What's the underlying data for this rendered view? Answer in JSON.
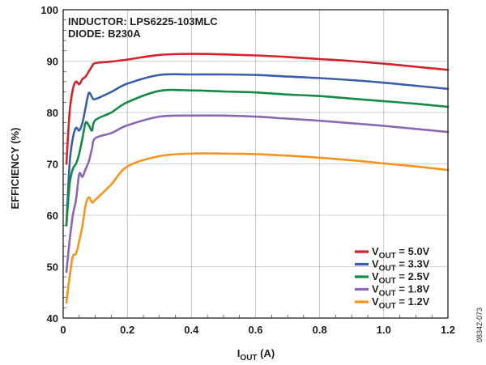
{
  "chart_data": {
    "type": "line",
    "annotations": [
      "INDUCTOR: LPS6225-103MLC",
      "DIODE: B230A"
    ],
    "xlabel": {
      "main": "I",
      "sub": "OUT",
      "unit": " (A)"
    },
    "ylabel": "EFFICIENCY (%)",
    "xlim": [
      0,
      1.2
    ],
    "ylim": [
      40,
      100
    ],
    "xticks": [
      "0",
      "0.2",
      "0.4",
      "0.6",
      "0.8",
      "1.0",
      "1.2"
    ],
    "yticks": [
      "40",
      "50",
      "60",
      "70",
      "80",
      "90",
      "100"
    ],
    "grid": true,
    "legend_position": "bottom-right",
    "figure_number": "08342-073",
    "series": [
      {
        "label": {
          "main": "V",
          "sub": "OUT",
          "value": " = 5.0V"
        },
        "color": "#d2232a",
        "points": [
          [
            0.01,
            70
          ],
          [
            0.02,
            80
          ],
          [
            0.03,
            84.5
          ],
          [
            0.04,
            86
          ],
          [
            0.05,
            85.5
          ],
          [
            0.06,
            86.5
          ],
          [
            0.07,
            87
          ],
          [
            0.08,
            88
          ],
          [
            0.09,
            89
          ],
          [
            0.1,
            89.6
          ],
          [
            0.15,
            89.9
          ],
          [
            0.2,
            90.3
          ],
          [
            0.3,
            91.2
          ],
          [
            0.4,
            91.4
          ],
          [
            0.5,
            91.3
          ],
          [
            0.6,
            91.1
          ],
          [
            0.7,
            90.8
          ],
          [
            0.8,
            90.4
          ],
          [
            0.9,
            90
          ],
          [
            1.0,
            89.5
          ],
          [
            1.1,
            88.9
          ],
          [
            1.2,
            88.3
          ]
        ]
      },
      {
        "label": {
          "main": "V",
          "sub": "OUT",
          "value": " = 3.3V"
        },
        "color": "#3b5ea8",
        "points": [
          [
            0.01,
            58
          ],
          [
            0.02,
            70
          ],
          [
            0.03,
            75
          ],
          [
            0.04,
            77
          ],
          [
            0.05,
            76.5
          ],
          [
            0.06,
            78
          ],
          [
            0.07,
            81
          ],
          [
            0.08,
            83.8
          ],
          [
            0.09,
            83
          ],
          [
            0.1,
            82.6
          ],
          [
            0.15,
            84
          ],
          [
            0.2,
            85.6
          ],
          [
            0.3,
            87.3
          ],
          [
            0.4,
            87.4
          ],
          [
            0.5,
            87.4
          ],
          [
            0.6,
            87.3
          ],
          [
            0.7,
            87
          ],
          [
            0.8,
            86.7
          ],
          [
            0.9,
            86.3
          ],
          [
            1.0,
            85.8
          ],
          [
            1.1,
            85.2
          ],
          [
            1.2,
            84.6
          ]
        ]
      },
      {
        "label": {
          "main": "V",
          "sub": "OUT",
          "value": " = 2.5V"
        },
        "color": "#138a45",
        "points": [
          [
            0.01,
            58
          ],
          [
            0.02,
            66
          ],
          [
            0.03,
            69
          ],
          [
            0.04,
            70
          ],
          [
            0.05,
            72
          ],
          [
            0.06,
            75
          ],
          [
            0.07,
            78
          ],
          [
            0.08,
            77.5
          ],
          [
            0.09,
            76.5
          ],
          [
            0.1,
            78.5
          ],
          [
            0.15,
            80
          ],
          [
            0.2,
            82
          ],
          [
            0.3,
            84.2
          ],
          [
            0.4,
            84.3
          ],
          [
            0.5,
            84.1
          ],
          [
            0.6,
            83.9
          ],
          [
            0.7,
            83.5
          ],
          [
            0.8,
            83.2
          ],
          [
            0.9,
            82.7
          ],
          [
            1.0,
            82.2
          ],
          [
            1.1,
            81.7
          ],
          [
            1.2,
            81.1
          ]
        ]
      },
      {
        "label": {
          "main": "V",
          "sub": "OUT",
          "value": " = 1.8V"
        },
        "color": "#8b67b0",
        "points": [
          [
            0.01,
            49
          ],
          [
            0.02,
            55
          ],
          [
            0.03,
            60
          ],
          [
            0.04,
            63
          ],
          [
            0.05,
            68
          ],
          [
            0.06,
            67.5
          ],
          [
            0.07,
            69
          ],
          [
            0.08,
            70.5
          ],
          [
            0.09,
            73
          ],
          [
            0.1,
            75
          ],
          [
            0.15,
            76
          ],
          [
            0.2,
            77.5
          ],
          [
            0.3,
            79.2
          ],
          [
            0.4,
            79.4
          ],
          [
            0.5,
            79.4
          ],
          [
            0.6,
            79.2
          ],
          [
            0.7,
            78.8
          ],
          [
            0.8,
            78.4
          ],
          [
            0.9,
            77.9
          ],
          [
            1.0,
            77.4
          ],
          [
            1.1,
            76.8
          ],
          [
            1.2,
            76.2
          ]
        ]
      },
      {
        "label": {
          "main": "V",
          "sub": "OUT",
          "value": " = 1.2V"
        },
        "color": "#f7941d",
        "points": [
          [
            0.01,
            43
          ],
          [
            0.02,
            48
          ],
          [
            0.03,
            52
          ],
          [
            0.04,
            52.5
          ],
          [
            0.05,
            55
          ],
          [
            0.06,
            58
          ],
          [
            0.07,
            62
          ],
          [
            0.08,
            63.5
          ],
          [
            0.09,
            62.5
          ],
          [
            0.1,
            63
          ],
          [
            0.15,
            66
          ],
          [
            0.2,
            69.5
          ],
          [
            0.3,
            71.5
          ],
          [
            0.4,
            72
          ],
          [
            0.5,
            72
          ],
          [
            0.6,
            71.9
          ],
          [
            0.7,
            71.6
          ],
          [
            0.8,
            71.2
          ],
          [
            0.9,
            70.7
          ],
          [
            1.0,
            70.1
          ],
          [
            1.1,
            69.5
          ],
          [
            1.2,
            68.8
          ]
        ]
      }
    ]
  }
}
